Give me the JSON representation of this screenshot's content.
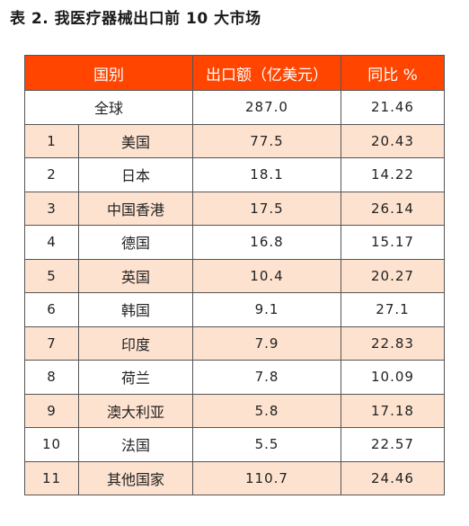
{
  "title": "表 2. 我医疗器械出口前 10 大市场",
  "columns": {
    "country": "国别",
    "amount": "出口额（亿美元）",
    "yoy": "同比 %"
  },
  "total": {
    "name": "全球",
    "amount": "287.0",
    "yoy": "21.46"
  },
  "rows": [
    {
      "rank": "1",
      "name": "美国",
      "amount": "77.5",
      "yoy": "20.43"
    },
    {
      "rank": "2",
      "name": "日本",
      "amount": "18.1",
      "yoy": "14.22"
    },
    {
      "rank": "3",
      "name": "中国香港",
      "amount": "17.5",
      "yoy": "26.14"
    },
    {
      "rank": "4",
      "name": "德国",
      "amount": "16.8",
      "yoy": "15.17"
    },
    {
      "rank": "5",
      "name": "英国",
      "amount": "10.4",
      "yoy": "20.27"
    },
    {
      "rank": "6",
      "name": "韩国",
      "amount": "9.1",
      "yoy": "27.1"
    },
    {
      "rank": "7",
      "name": "印度",
      "amount": "7.9",
      "yoy": "22.83"
    },
    {
      "rank": "8",
      "name": "荷兰",
      "amount": "7.8",
      "yoy": "10.09"
    },
    {
      "rank": "9",
      "name": "澳大利亚",
      "amount": "5.8",
      "yoy": "17.18"
    },
    {
      "rank": "10",
      "name": "法国",
      "amount": "5.5",
      "yoy": "22.57"
    },
    {
      "rank": "11",
      "name": "其他国家",
      "amount": "110.7",
      "yoy": "24.46"
    }
  ],
  "colors": {
    "header_bg": "#ff4500",
    "header_text": "#ffffff",
    "alt_row_bg": "#fde2cf",
    "plain_row_bg": "#ffffff",
    "border": "#555555"
  }
}
